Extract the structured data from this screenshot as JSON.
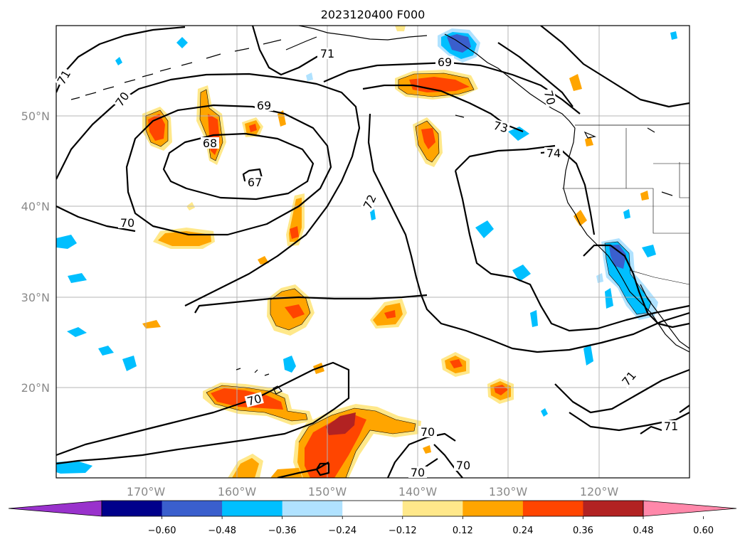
{
  "title": "2023120400 F000",
  "map": {
    "lon_labels": [
      "170°W",
      "160°W",
      "150°W",
      "140°W",
      "130°W",
      "120°W"
    ],
    "lat_labels": [
      "50°N",
      "40°N",
      "30°N",
      "20°N"
    ],
    "lon_range": [
      -180,
      -110
    ],
    "lat_range": [
      10,
      60
    ],
    "grid": true,
    "contour_labels": [
      "71",
      "71",
      "70",
      "69",
      "69",
      "68",
      "67",
      "70",
      "72",
      "73",
      "74",
      "70",
      "70",
      "70",
      "70",
      "70",
      "71",
      "71"
    ]
  },
  "colorbar": {
    "ticks": [
      "−0.60",
      "−0.48",
      "−0.36",
      "−0.24",
      "−0.12",
      "0.12",
      "0.24",
      "0.36",
      "0.48",
      "0.60"
    ],
    "colors": [
      "#9932cc",
      "#00008b",
      "#3a5fcd",
      "#00bfff",
      "#b0e2ff",
      "#ffffff",
      "#ffe88a",
      "#ffa500",
      "#ff4500",
      "#b22222",
      "#ff88aa"
    ]
  }
}
